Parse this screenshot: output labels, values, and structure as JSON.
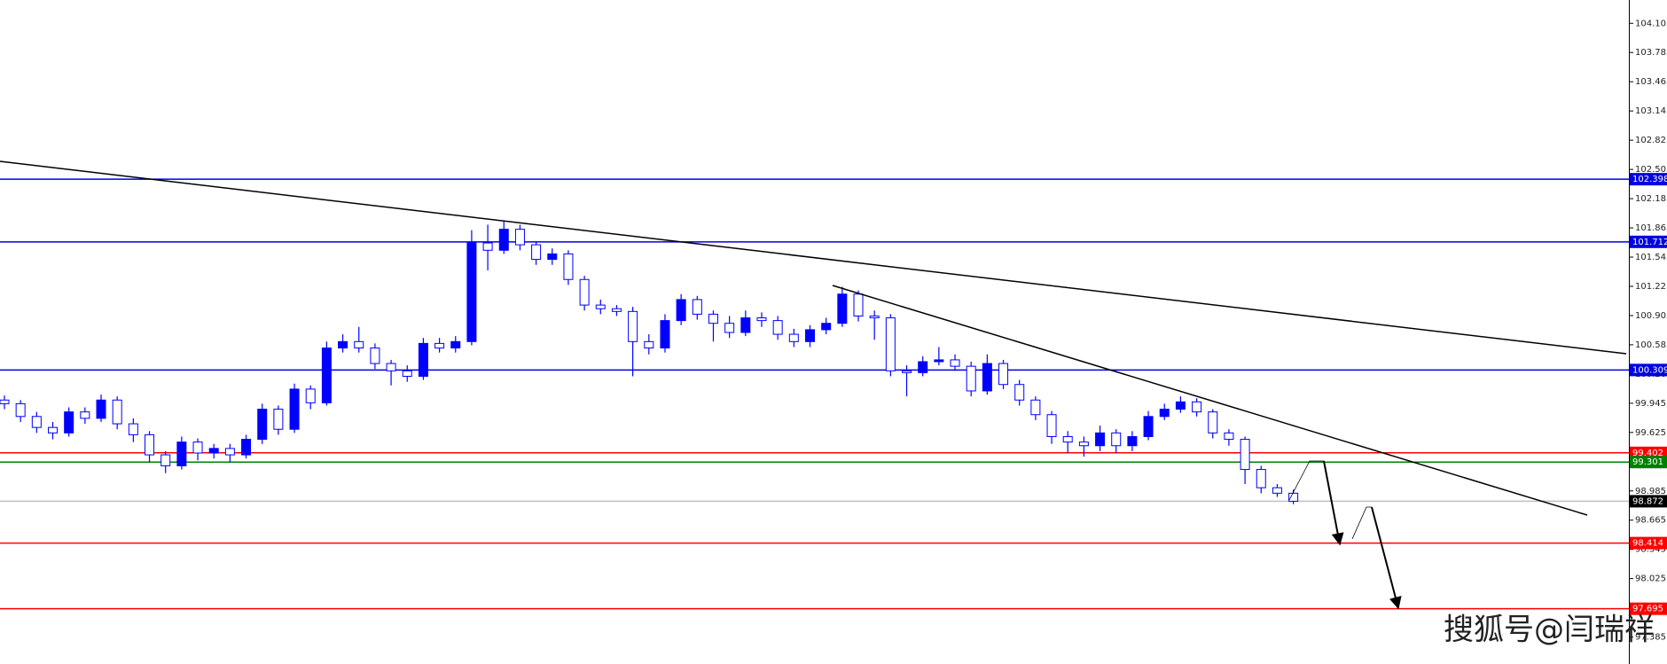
{
  "chart_data": {
    "type": "candlestick",
    "annotation": "搜狐号@闫瑞祥",
    "up_color": "#0000ff",
    "down_color": "#0000ff",
    "ylim": [
      97.09,
      104.36
    ],
    "yticks": [
      104.105,
      103.785,
      103.465,
      103.145,
      102.825,
      102.505,
      102.185,
      101.865,
      101.545,
      101.225,
      100.905,
      100.585,
      100.265,
      99.945,
      99.625,
      99.305,
      98.985,
      98.665,
      98.345,
      98.025,
      97.705,
      97.385
    ],
    "open": [
      99.98,
      99.94,
      99.8,
      99.68,
      99.62,
      99.85,
      99.78,
      99.98,
      99.72,
      99.6,
      99.38,
      99.26,
      99.52,
      99.4,
      99.45,
      99.38,
      99.55,
      99.88,
      99.66,
      100.1,
      99.95,
      100.55,
      100.62,
      100.55,
      100.38,
      100.3,
      100.24,
      100.6,
      100.55,
      100.62,
      101.7,
      101.62,
      101.85,
      101.68,
      101.52,
      101.58,
      101.3,
      101.02,
      100.98,
      100.95,
      100.62,
      100.55,
      100.85,
      101.08,
      100.92,
      100.82,
      100.72,
      100.88,
      100.85,
      100.7,
      100.62,
      100.75,
      100.82,
      101.14,
      100.9,
      100.88,
      100.3,
      100.28,
      100.4,
      100.42,
      100.35,
      100.08,
      100.38,
      100.15,
      99.98,
      99.82,
      99.58,
      99.52,
      99.48,
      99.62,
      99.48,
      99.58,
      99.8,
      99.88,
      99.96,
      99.85,
      99.62,
      99.55,
      99.22,
      99.02,
      98.96
    ],
    "high": [
      100.03,
      99.98,
      99.85,
      99.74,
      99.9,
      99.9,
      100.04,
      100.02,
      99.78,
      99.64,
      99.42,
      99.58,
      99.56,
      99.5,
      99.5,
      99.6,
      99.94,
      99.92,
      100.16,
      100.14,
      100.62,
      100.7,
      100.78,
      100.6,
      100.42,
      100.36,
      100.66,
      100.66,
      100.68,
      101.84,
      101.9,
      101.94,
      101.9,
      101.72,
      101.64,
      101.62,
      101.34,
      101.08,
      101.02,
      101.0,
      100.7,
      100.92,
      101.14,
      101.12,
      100.96,
      100.9,
      100.96,
      100.94,
      100.9,
      100.76,
      100.8,
      100.88,
      101.22,
      101.18,
      100.96,
      100.92,
      100.36,
      100.46,
      100.56,
      100.48,
      100.4,
      100.48,
      100.42,
      100.2,
      100.02,
      99.86,
      99.64,
      99.58,
      99.7,
      99.66,
      99.64,
      99.86,
      99.94,
      100.02,
      100.0,
      99.88,
      99.66,
      99.58,
      99.26,
      99.06,
      99.0
    ],
    "low": [
      99.88,
      99.74,
      99.62,
      99.55,
      99.58,
      99.72,
      99.74,
      99.66,
      99.52,
      99.3,
      99.18,
      99.22,
      99.32,
      99.34,
      99.3,
      99.34,
      99.5,
      99.6,
      99.62,
      99.88,
      99.92,
      100.5,
      100.5,
      100.32,
      100.14,
      100.18,
      100.2,
      100.5,
      100.5,
      100.58,
      101.4,
      101.58,
      101.62,
      101.46,
      101.46,
      101.24,
      100.96,
      100.92,
      100.9,
      100.24,
      100.48,
      100.5,
      100.8,
      100.86,
      100.62,
      100.66,
      100.68,
      100.78,
      100.64,
      100.56,
      100.56,
      100.7,
      100.78,
      100.84,
      100.64,
      100.24,
      100.02,
      100.24,
      100.36,
      100.3,
      100.02,
      100.04,
      100.1,
      99.92,
      99.76,
      99.5,
      99.4,
      99.36,
      99.42,
      99.4,
      99.42,
      99.54,
      99.76,
      99.84,
      99.8,
      99.56,
      99.48,
      99.06,
      98.96,
      98.92,
      98.84
    ],
    "close": [
      99.94,
      99.8,
      99.68,
      99.62,
      99.85,
      99.78,
      99.98,
      99.72,
      99.6,
      99.38,
      99.26,
      99.52,
      99.4,
      99.45,
      99.38,
      99.55,
      99.88,
      99.66,
      100.1,
      99.95,
      100.55,
      100.62,
      100.55,
      100.38,
      100.3,
      100.24,
      100.6,
      100.55,
      100.62,
      101.7,
      101.62,
      101.85,
      101.68,
      101.52,
      101.58,
      101.3,
      101.02,
      100.98,
      100.95,
      100.62,
      100.55,
      100.85,
      101.08,
      100.92,
      100.82,
      100.72,
      100.88,
      100.85,
      100.7,
      100.62,
      100.75,
      100.82,
      101.14,
      100.9,
      100.88,
      100.3,
      100.28,
      100.4,
      100.42,
      100.35,
      100.08,
      100.38,
      100.15,
      99.98,
      99.82,
      99.58,
      99.52,
      99.48,
      99.62,
      99.48,
      99.58,
      99.8,
      99.88,
      99.96,
      99.85,
      99.62,
      99.55,
      99.22,
      99.02,
      98.96,
      98.872
    ],
    "levels": [
      {
        "value": 102.398,
        "color": "#0000e0"
      },
      {
        "value": 101.712,
        "color": "#0000e0"
      },
      {
        "value": 100.309,
        "color": "#0000e0"
      },
      {
        "value": 99.402,
        "color": "#ff0000"
      },
      {
        "value": 99.301,
        "color": "#008000"
      },
      {
        "value": 98.872,
        "color": "#c0c0c0",
        "label_background": "#000000"
      },
      {
        "value": 98.414,
        "color": "#ff0000"
      },
      {
        "value": 97.695,
        "color": "#ff0000"
      }
    ]
  }
}
